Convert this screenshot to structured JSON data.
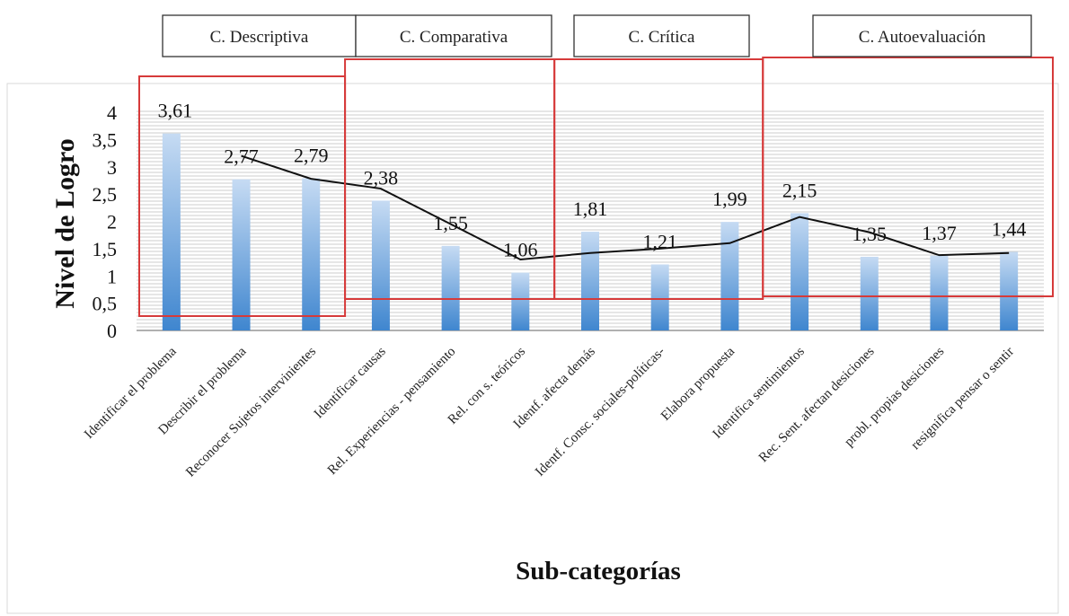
{
  "groups": [
    {
      "label": "C. Descriptiva",
      "start": 0,
      "end": 2
    },
    {
      "label": "C. Comparativa",
      "start": 3,
      "end": 5
    },
    {
      "label": "C. Crítica",
      "start": 6,
      "end": 8
    },
    {
      "label": "C. Autoevaluación",
      "start": 9,
      "end": 12
    }
  ],
  "colors": {
    "bar_top": "#c6dbf3",
    "bar_bottom": "#3f86cf",
    "line": "#111111",
    "grid": "#bdbdbd",
    "highlight_box": "#d63a3a"
  },
  "chart_data": {
    "type": "bar",
    "xlabel": "Sub-categorías",
    "ylabel": "Nivel de Logro",
    "ylim": [
      0,
      4
    ],
    "yticks": [
      "0",
      "0,5",
      "1",
      "1,5",
      "2",
      "2,5",
      "3",
      "3,5",
      "4"
    ],
    "grid": true,
    "categories": [
      "Identificar el problema",
      "Describir el problema",
      "Reconocer Sujetos intervinientes",
      "Identificar causas",
      "Rel. Experiencias - pensamiento",
      "Rel. con s. teóricos",
      "Identf. afecta demás",
      "Identf. Consc. sociales-políticas-",
      "Elabora propuesta",
      "Identifica sentimientos",
      "Rec. Sent. afectan desiciones",
      "probl. propias desiciones",
      "resignifica pensar o sentir"
    ],
    "values": [
      3.61,
      2.77,
      2.79,
      2.38,
      1.55,
      1.06,
      1.81,
      1.21,
      1.99,
      2.15,
      1.35,
      1.37,
      1.44
    ],
    "value_labels": [
      "3,61",
      "2,77",
      "2,79",
      "2,38",
      "1,55",
      "1,06",
      "1,81",
      "1,21",
      "1,99",
      "2,15",
      "1,35",
      "1,37",
      "1,44"
    ],
    "trendline": [
      null,
      3.2,
      2.78,
      2.6,
      1.95,
      1.3,
      1.42,
      1.5,
      1.6,
      2.08,
      1.8,
      1.38,
      1.42
    ]
  }
}
